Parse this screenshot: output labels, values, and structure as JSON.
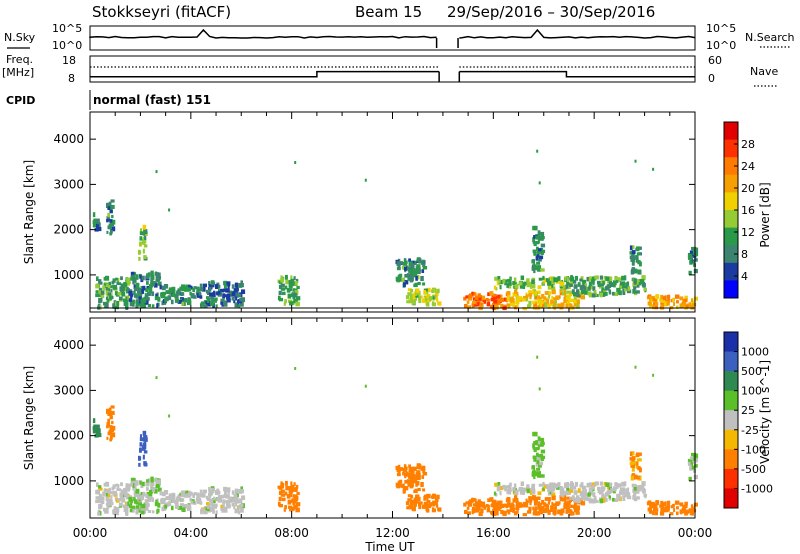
{
  "header": {
    "station": "Stokkseyri (fitACF)",
    "beam": "Beam 15",
    "dates": "29/Sep/2016 – 30/Sep/2016"
  },
  "top_panels": {
    "nsky_label": "N.Sky",
    "nsky_ticks": [
      "10^5",
      "10^0"
    ],
    "nsearch_label": "N.Search",
    "nsearch_ticks": [
      "10^5",
      "10^0"
    ],
    "freq_label": "Freq.",
    "freq_unit": "[MHz]",
    "freq_ticks": [
      18,
      8
    ],
    "nave_label": "Nave",
    "nave_ticks": [
      60,
      0
    ],
    "cpid_label": "CPID",
    "cpid_value": "normal (fast) 151"
  },
  "colorbars": {
    "power": {
      "label": "Power [dB]",
      "ticks": [
        "28",
        "24",
        "20",
        "16",
        "12",
        "8",
        "4"
      ],
      "colors": [
        "#e00000",
        "#ff3000",
        "#ff7a00",
        "#f5a000",
        "#f0d000",
        "#96cc33",
        "#2a9a4a",
        "#3c8470",
        "#1a3ca0",
        "#0000ff"
      ]
    },
    "velocity": {
      "label": "Velocity [m s^-1]",
      "ticks": [
        "1000",
        "500",
        "100",
        "25",
        "-25",
        "-100",
        "-500",
        "-1000"
      ],
      "colors": [
        "#1a30a8",
        "#3c60c0",
        "#2e8a50",
        "#5bbf2a",
        "#c0c0c0",
        "#f5b800",
        "#ff8000",
        "#ff3000",
        "#e00000"
      ]
    }
  },
  "chart_data": {
    "type": "heatmap",
    "x_ticks": [
      "00:00",
      "04:00",
      "08:00",
      "12:00",
      "16:00",
      "20:00",
      "00:00"
    ],
    "x_range_hours": [
      0,
      24
    ],
    "x_label": "Time UT",
    "y_label": "Slant Range [km]",
    "y_ticks": [
      1000,
      2000,
      3000,
      4000
    ],
    "y_range_km": [
      180,
      4600
    ],
    "freq_mhz": [
      {
        "start": 0,
        "end": 9.0,
        "value": 10
      },
      {
        "start": 9.0,
        "end": 13.85,
        "value": 12
      },
      {
        "start": 14.65,
        "end": 18.9,
        "value": 12
      },
      {
        "start": 18.9,
        "end": 24,
        "value": 10
      }
    ],
    "data_gap_hours": [
      13.85,
      14.65
    ],
    "scatter_regions": [
      {
        "t0": 0.2,
        "t1": 1.5,
        "r0": 200,
        "r1": 900,
        "p": 10,
        "v": 0
      },
      {
        "t0": 1.5,
        "t1": 2.8,
        "r0": 250,
        "r1": 1000,
        "p": 7,
        "v": 20
      },
      {
        "t0": 2.8,
        "t1": 4.3,
        "r0": 300,
        "r1": 700,
        "p": 8,
        "v": 10
      },
      {
        "t0": 4.3,
        "t1": 6.0,
        "r0": 250,
        "r1": 800,
        "p": 6,
        "v": 0
      },
      {
        "t0": 7.4,
        "t1": 8.2,
        "r0": 300,
        "r1": 900,
        "p": 10,
        "v": -200
      },
      {
        "t0": 12.1,
        "t1": 13.2,
        "r0": 700,
        "r1": 1300,
        "p": 8,
        "v": -400
      },
      {
        "t0": 12.5,
        "t1": 13.8,
        "r0": 300,
        "r1": 650,
        "p": 14,
        "v": -150
      },
      {
        "t0": 14.7,
        "t1": 16.5,
        "r0": 220,
        "r1": 550,
        "p": 24,
        "v": -200
      },
      {
        "t0": 16.5,
        "t1": 19.5,
        "r0": 220,
        "r1": 600,
        "p": 18,
        "v": -150
      },
      {
        "t0": 16.0,
        "t1": 19.0,
        "r0": 650,
        "r1": 900,
        "p": 12,
        "v": 0
      },
      {
        "t0": 19.0,
        "t1": 22.0,
        "r0": 500,
        "r1": 900,
        "p": 10,
        "v": 0
      },
      {
        "t0": 22.0,
        "t1": 24.0,
        "r0": 220,
        "r1": 500,
        "p": 20,
        "v": -150
      },
      {
        "t0": 23.7,
        "t1": 24.0,
        "r0": 1000,
        "r1": 1600,
        "p": 8,
        "v": 30
      },
      {
        "t0": 1.9,
        "t1": 2.15,
        "r0": 1300,
        "r1": 2000,
        "p": 12,
        "v": 700
      },
      {
        "t0": 0.6,
        "t1": 0.9,
        "r0": 1800,
        "r1": 2600,
        "p": 8,
        "v": -300
      },
      {
        "t0": 0.1,
        "t1": 0.3,
        "r0": 1800,
        "r1": 2300,
        "p": 8,
        "v": 300
      },
      {
        "t0": 21.4,
        "t1": 21.8,
        "r0": 1000,
        "r1": 1600,
        "p": 8,
        "v": -100
      },
      {
        "t0": 17.5,
        "t1": 17.9,
        "r0": 1000,
        "r1": 2000,
        "p": 8,
        "v": 50
      }
    ]
  }
}
